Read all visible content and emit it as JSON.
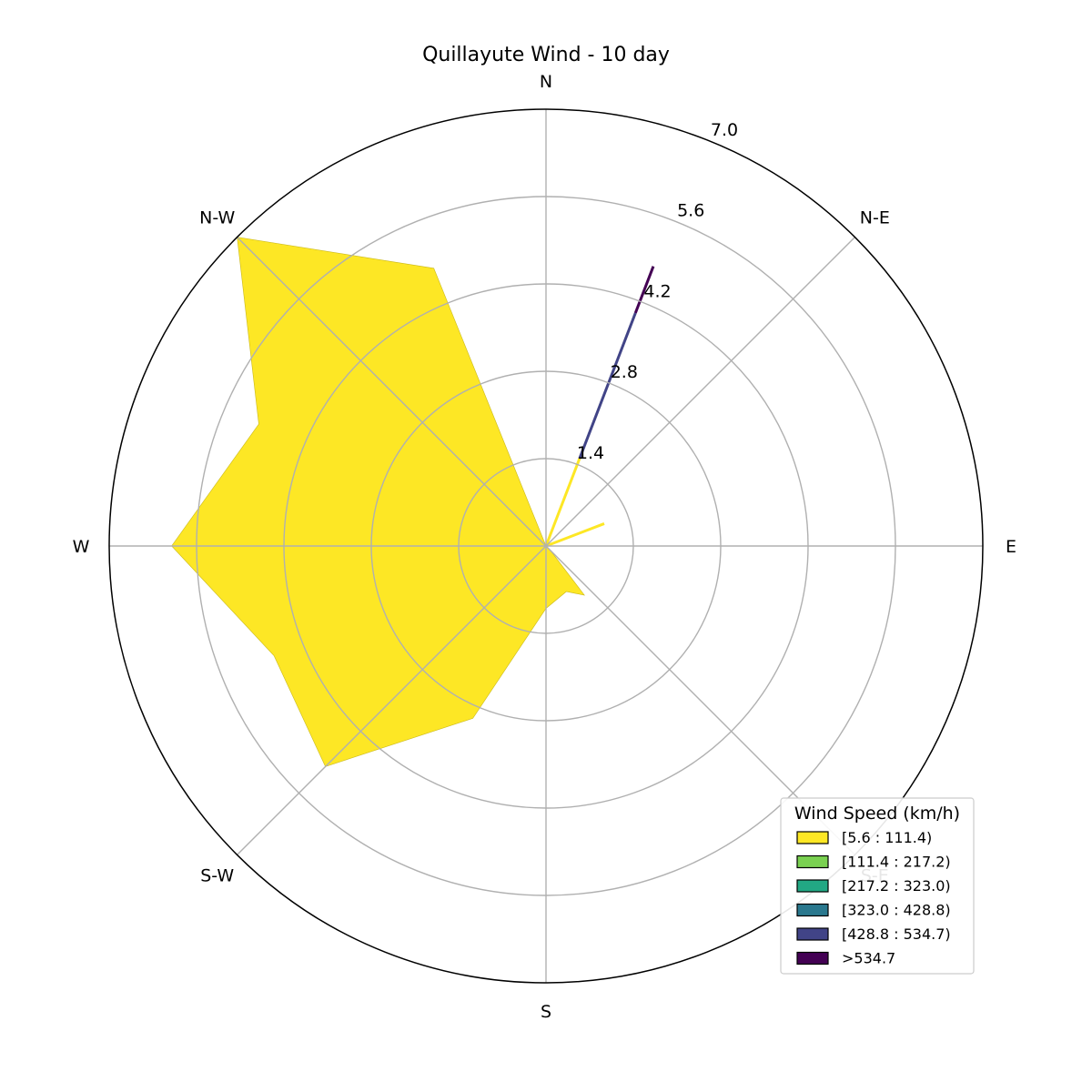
{
  "chart_data": {
    "type": "windrose",
    "title": "Quillayute Wind - 10 day",
    "directions": [
      "N",
      "N-E",
      "E",
      "S-E",
      "S",
      "S-W",
      "W",
      "N-W"
    ],
    "radial_ticks": [
      "1.4",
      "2.8",
      "4.2",
      "5.6",
      "7.0"
    ],
    "rlim": [
      0,
      7.0
    ],
    "grid": true,
    "legend": {
      "title": "Wind Speed (km/h)",
      "placement": "lower-right",
      "entries": [
        {
          "label": "[5.6 : 111.4)",
          "color": "#fde725"
        },
        {
          "label": "[111.4 : 217.2)",
          "color": "#7ad151"
        },
        {
          "label": "[217.2 : 323.0)",
          "color": "#22a884"
        },
        {
          "label": "[323.0 : 428.8)",
          "color": "#2a788e"
        },
        {
          "label": "[428.8 : 534.7)",
          "color": "#414487"
        },
        {
          "label": ">534.7",
          "color": "#440154"
        }
      ]
    },
    "area_series": {
      "name": "[5.6 : 111.4)",
      "color": "#fde725",
      "points": [
        {
          "bearing": 0,
          "value": 0.0
        },
        {
          "bearing": 135,
          "value": 0.1
        },
        {
          "bearing": 142,
          "value": 1.0
        },
        {
          "bearing": 156,
          "value": 0.8
        },
        {
          "bearing": 180,
          "value": 1.0
        },
        {
          "bearing": 203,
          "value": 3.0
        },
        {
          "bearing": 225,
          "value": 5.0
        },
        {
          "bearing": 248,
          "value": 4.7
        },
        {
          "bearing": 270,
          "value": 6.0
        },
        {
          "bearing": 293,
          "value": 5.0
        },
        {
          "bearing": 315,
          "value": 7.0
        },
        {
          "bearing": 338,
          "value": 4.8
        },
        {
          "bearing": 360,
          "value": 0.0
        }
      ]
    },
    "spikes": [
      {
        "bearing": 21,
        "segments": [
          {
            "from": 0.0,
            "to": 1.5,
            "color": "#fde725"
          },
          {
            "from": 1.5,
            "to": 4.0,
            "color": "#414487"
          },
          {
            "from": 4.0,
            "to": 4.8,
            "color": "#440154"
          }
        ]
      },
      {
        "bearing": 69,
        "segments": [
          {
            "from": 0.0,
            "to": 1.0,
            "color": "#fde725"
          }
        ]
      }
    ]
  }
}
